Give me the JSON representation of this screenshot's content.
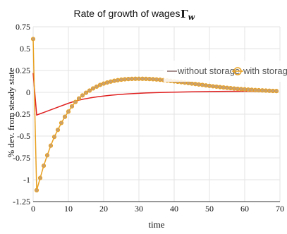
{
  "chart_data": {
    "type": "line",
    "title": "Rate of growth of wages",
    "title_symbol": "Γ",
    "title_symbol_sub": "w",
    "xlabel": "time",
    "ylabel": "% dev. from steady state",
    "xlim": [
      0,
      70
    ],
    "ylim": [
      -1.25,
      0.75
    ],
    "x_ticks": [
      "0",
      "10",
      "20",
      "30",
      "40",
      "50",
      "60",
      "70"
    ],
    "y_ticks": [
      "0.75",
      "0.5",
      "0.25",
      "0",
      "-0.25",
      "-0.5",
      "-0.75",
      "-1",
      "-1.25"
    ],
    "grid": true,
    "legend_position": "right",
    "series": [
      {
        "name": "without storage",
        "color": "#e02020",
        "marker": "none",
        "x": [
          0,
          1,
          2,
          3,
          4,
          5,
          6,
          7,
          8,
          9,
          10,
          12,
          14,
          16,
          18,
          20,
          22,
          24,
          26,
          28,
          30,
          32,
          35,
          38,
          40,
          45,
          50,
          55,
          60,
          65,
          69
        ],
        "values": [
          0.22,
          -0.26,
          -0.245,
          -0.23,
          -0.215,
          -0.2,
          -0.185,
          -0.17,
          -0.155,
          -0.14,
          -0.125,
          -0.1,
          -0.08,
          -0.065,
          -0.052,
          -0.042,
          -0.033,
          -0.026,
          -0.02,
          -0.015,
          -0.011,
          -0.007,
          -0.003,
          0.0,
          0.002,
          0.006,
          0.009,
          0.011,
          0.012,
          0.012,
          0.012
        ]
      },
      {
        "name": "with storage",
        "color": "#e8a020",
        "marker": "circle",
        "x": [
          0,
          1,
          2,
          3,
          4,
          5,
          6,
          7,
          8,
          9,
          10,
          11,
          12,
          13,
          14,
          15,
          16,
          17,
          18,
          19,
          20,
          21,
          22,
          23,
          24,
          25,
          26,
          27,
          28,
          29,
          30,
          31,
          32,
          33,
          34,
          35,
          36,
          37,
          38,
          39,
          40,
          41,
          42,
          43,
          44,
          45,
          46,
          47,
          48,
          49,
          50,
          51,
          52,
          53,
          54,
          55,
          56,
          57,
          58,
          59,
          60,
          61,
          62,
          63,
          64,
          65,
          66,
          67,
          68,
          69
        ],
        "values": [
          0.61,
          -1.12,
          -0.98,
          -0.84,
          -0.72,
          -0.61,
          -0.51,
          -0.43,
          -0.35,
          -0.28,
          -0.22,
          -0.16,
          -0.11,
          -0.07,
          -0.035,
          -0.005,
          0.02,
          0.045,
          0.065,
          0.085,
          0.1,
          0.112,
          0.123,
          0.132,
          0.139,
          0.145,
          0.149,
          0.152,
          0.154,
          0.155,
          0.155,
          0.155,
          0.154,
          0.152,
          0.15,
          0.147,
          0.144,
          0.14,
          0.136,
          0.131,
          0.126,
          0.121,
          0.116,
          0.111,
          0.106,
          0.1,
          0.095,
          0.09,
          0.085,
          0.079,
          0.074,
          0.069,
          0.065,
          0.06,
          0.056,
          0.052,
          0.048,
          0.044,
          0.041,
          0.037,
          0.034,
          0.031,
          0.029,
          0.026,
          0.024,
          0.022,
          0.02,
          0.018,
          0.016,
          0.015
        ]
      }
    ]
  }
}
